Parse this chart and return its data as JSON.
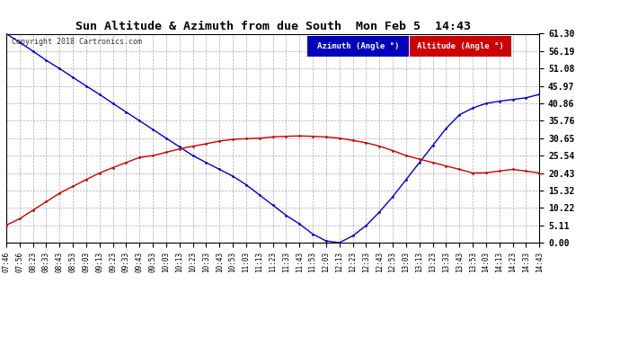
{
  "title": "Sun Altitude & Azimuth from due South  Mon Feb 5  14:43",
  "copyright": "Copyright 2018 Cartronics.com",
  "legend_azimuth": "Azimuth (Angle °)",
  "legend_altitude": "Altitude (Angle °)",
  "azimuth_color": "#0000cc",
  "altitude_color": "#cc0000",
  "legend_az_bg": "#0000bb",
  "legend_alt_bg": "#cc0000",
  "background_color": "#ffffff",
  "grid_color": "#aaaaaa",
  "yticks": [
    0.0,
    5.11,
    10.22,
    15.32,
    20.43,
    25.54,
    30.65,
    35.76,
    40.86,
    45.97,
    51.08,
    56.19,
    61.3
  ],
  "xtick_labels": [
    "07:46",
    "07:56",
    "08:23",
    "08:33",
    "08:43",
    "08:53",
    "09:03",
    "09:13",
    "09:23",
    "09:33",
    "09:43",
    "09:53",
    "10:03",
    "10:13",
    "10:23",
    "10:33",
    "10:43",
    "10:53",
    "11:03",
    "11:13",
    "11:23",
    "11:33",
    "11:43",
    "11:53",
    "12:03",
    "12:13",
    "12:23",
    "12:33",
    "12:43",
    "12:53",
    "13:03",
    "13:13",
    "13:23",
    "13:33",
    "13:43",
    "13:53",
    "14:03",
    "14:13",
    "14:23",
    "14:33",
    "14:43"
  ],
  "azimuth_values": [
    61.3,
    58.8,
    56.19,
    53.5,
    51.08,
    48.5,
    45.97,
    43.5,
    40.86,
    38.3,
    35.76,
    33.2,
    30.65,
    28.1,
    25.54,
    23.5,
    21.5,
    19.5,
    17.0,
    14.0,
    11.0,
    8.0,
    5.5,
    2.5,
    0.5,
    0.0,
    2.0,
    5.0,
    9.0,
    13.5,
    18.5,
    23.5,
    28.5,
    33.5,
    37.5,
    39.5,
    40.86,
    41.5,
    42.0,
    42.5,
    43.5
  ],
  "altitude_values": [
    5.11,
    7.0,
    9.5,
    12.0,
    14.5,
    16.5,
    18.5,
    20.43,
    22.0,
    23.5,
    25.0,
    25.54,
    26.5,
    27.5,
    28.3,
    29.0,
    29.8,
    30.3,
    30.5,
    30.65,
    31.0,
    31.2,
    31.3,
    31.2,
    31.0,
    30.65,
    30.0,
    29.3,
    28.3,
    27.0,
    25.54,
    24.5,
    23.5,
    22.5,
    21.5,
    20.43,
    20.5,
    21.0,
    21.5,
    21.0,
    20.43
  ]
}
